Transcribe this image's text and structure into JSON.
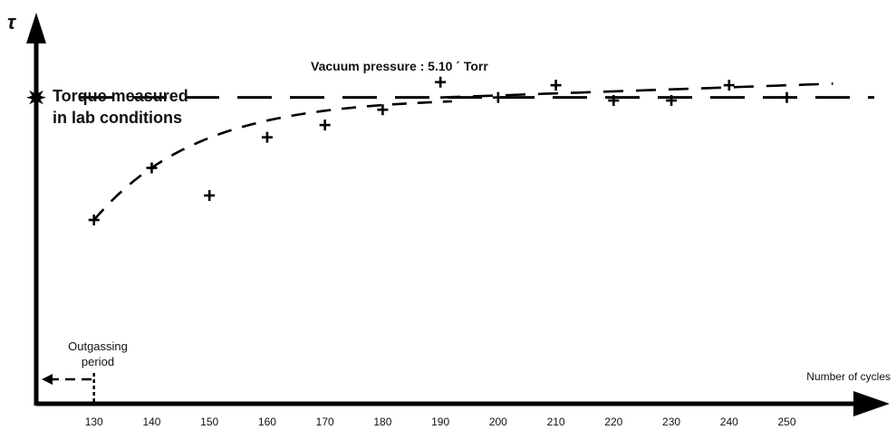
{
  "chart_data": {
    "type": "scatter",
    "title": "Vacuum pressure : 5.10 ´ Torr",
    "ylabel": "τ",
    "xlabel": "Number of cycles",
    "x_ticks": [
      "130",
      "140",
      "150",
      "160",
      "170",
      "180",
      "190",
      "200",
      "210",
      "220",
      "230",
      "240",
      "250"
    ],
    "xlim": [
      120,
      262
    ],
    "ylim": [
      0,
      1.2
    ],
    "reference": {
      "label_line1": "Torque measured",
      "label_line2": "in lab conditions",
      "value": 1.0
    },
    "annotation": {
      "label_line1": "Outgassing",
      "label_line2": "period",
      "x_start": 120,
      "x_end": 130
    },
    "series": [
      {
        "values": [
          {
            "x": 130,
            "y": 0.6
          },
          {
            "x": 140,
            "y": 0.77
          },
          {
            "x": 150,
            "y": 0.68
          },
          {
            "x": 160,
            "y": 0.87
          },
          {
            "x": 170,
            "y": 0.91
          },
          {
            "x": 180,
            "y": 0.96
          },
          {
            "x": 190,
            "y": 1.05
          },
          {
            "x": 200,
            "y": 1.0
          },
          {
            "x": 210,
            "y": 1.04
          },
          {
            "x": 220,
            "y": 0.99
          },
          {
            "x": 230,
            "y": 0.99
          },
          {
            "x": 240,
            "y": 1.04
          },
          {
            "x": 250,
            "y": 1.0
          }
        ]
      }
    ],
    "grid": false
  }
}
